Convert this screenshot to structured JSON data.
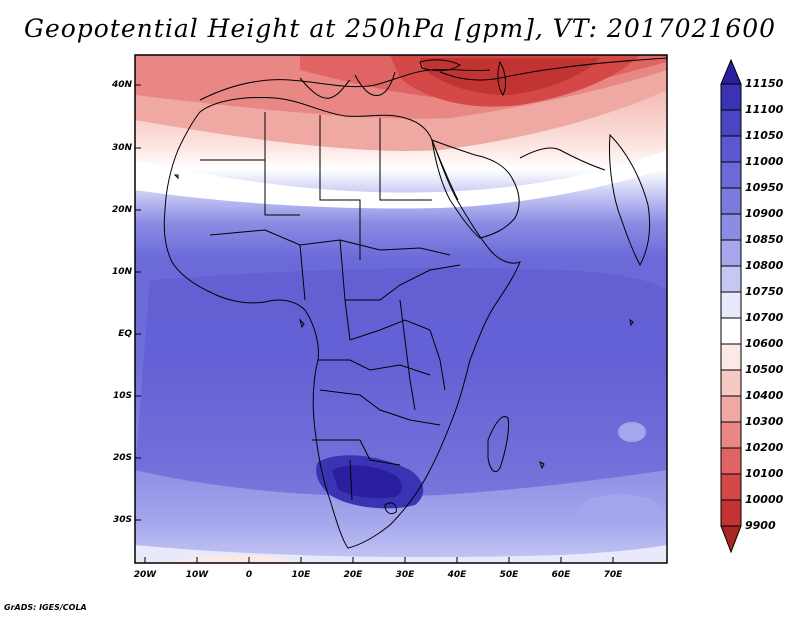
{
  "title": "Geopotential Height at 250hPa [gpm], VT: 2017021600",
  "footer": "GrADS: IGES/COLA",
  "map": {
    "lat_labels": [
      "40N",
      "30N",
      "20N",
      "10N",
      "EQ",
      "10S",
      "20S",
      "30S"
    ],
    "lon_labels": [
      "20W",
      "10W",
      "0",
      "10E",
      "20E",
      "30E",
      "40E",
      "50E",
      "60E",
      "70E"
    ],
    "extent": {
      "lon_min": -21,
      "lon_max": 81,
      "lat_min": -37,
      "lat_max": 45
    }
  },
  "colorbar": {
    "levels": [
      "11150",
      "11100",
      "11050",
      "11000",
      "10950",
      "10900",
      "10850",
      "10800",
      "10750",
      "10700",
      "10600",
      "10500",
      "10400",
      "10300",
      "10200",
      "10100",
      "10000",
      "9900"
    ],
    "colors": [
      "#2a1fa0",
      "#3a33b4",
      "#4a45c4",
      "#5c58d2",
      "#6c6ad8",
      "#7b7ade",
      "#8c8ce4",
      "#a5a6ec",
      "#c6c8f4",
      "#e8e9fb",
      "#fbe9e6",
      "#f6c9c4",
      "#f0a8a2",
      "#e88784",
      "#e06464",
      "#d44848",
      "#c23432",
      "#a82624"
    ]
  }
}
